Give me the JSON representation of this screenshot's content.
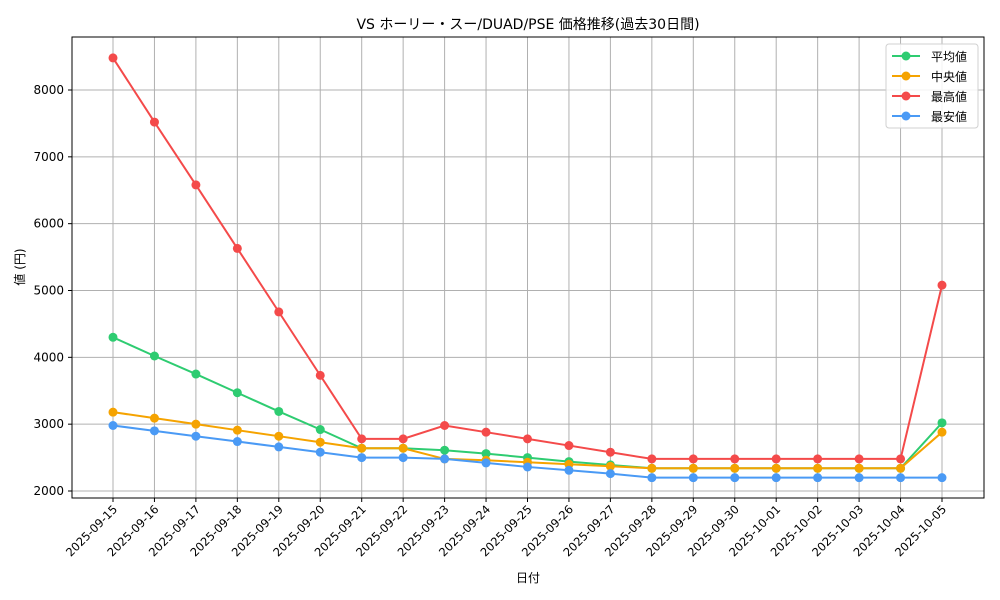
{
  "chart_data": {
    "type": "line",
    "title": "VS ホーリー・スー/DUAD/PSE 価格推移(過去30日間)",
    "xlabel": "日付",
    "ylabel": "値 (円)",
    "ylim": [
      1870,
      8780
    ],
    "yticks": [
      2000,
      3000,
      4000,
      5000,
      6000,
      7000,
      8000
    ],
    "grid": true,
    "legend_position": "upper right",
    "categories": [
      "2025-09-15",
      "2025-09-16",
      "2025-09-17",
      "2025-09-18",
      "2025-09-19",
      "2025-09-20",
      "2025-09-21",
      "2025-09-22",
      "2025-09-23",
      "2025-09-24",
      "2025-09-25",
      "2025-09-26",
      "2025-09-27",
      "2025-09-28",
      "2025-09-29",
      "2025-09-30",
      "2025-10-01",
      "2025-10-02",
      "2025-10-03",
      "2025-10-04",
      "2025-10-05"
    ],
    "series": [
      {
        "name": "平均値",
        "color": "#2ecc71",
        "values": [
          4300,
          4020,
          3750,
          3470,
          3190,
          2920,
          2640,
          2640,
          2610,
          2560,
          2500,
          2440,
          2390,
          2340,
          2340,
          2340,
          2340,
          2340,
          2340,
          2340,
          3020
        ]
      },
      {
        "name": "中央値",
        "color": "#f5a300",
        "values": [
          3180,
          3090,
          3000,
          2910,
          2820,
          2730,
          2640,
          2640,
          2480,
          2460,
          2430,
          2400,
          2370,
          2340,
          2340,
          2340,
          2340,
          2340,
          2340,
          2340,
          2880
        ]
      },
      {
        "name": "最高値",
        "color": "#f44a4a",
        "values": [
          8480,
          7520,
          6580,
          5630,
          4680,
          3730,
          2780,
          2780,
          2980,
          2880,
          2780,
          2680,
          2580,
          2480,
          2480,
          2480,
          2480,
          2480,
          2480,
          2480,
          5080
        ]
      },
      {
        "name": "最安値",
        "color": "#4a9af5",
        "values": [
          2980,
          2900,
          2820,
          2740,
          2660,
          2580,
          2500,
          2500,
          2480,
          2420,
          2360,
          2310,
          2260,
          2200,
          2200,
          2200,
          2200,
          2200,
          2200,
          2200,
          2200
        ]
      }
    ]
  }
}
